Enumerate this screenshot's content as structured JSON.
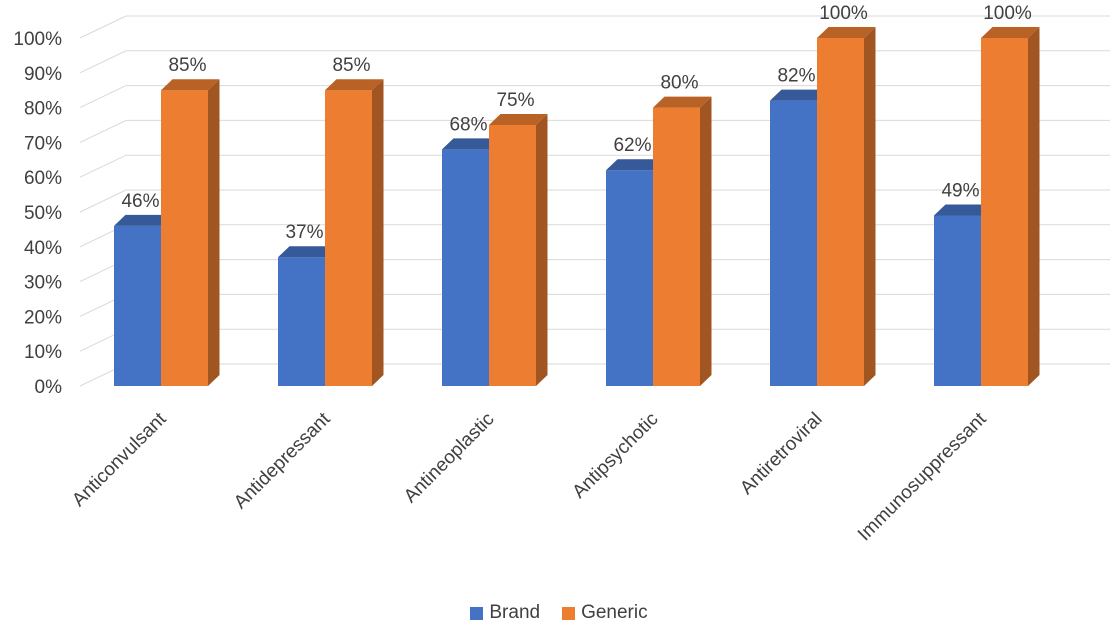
{
  "chart_data": {
    "type": "bar",
    "title": "",
    "xlabel": "",
    "ylabel": "",
    "categories": [
      "Anticonvulsant",
      "Antidepressant",
      "Antineoplastic",
      "Antipsychotic",
      "Antiretroviral",
      "Immunosuppressant"
    ],
    "series": [
      {
        "name": "Brand",
        "values": [
          46,
          37,
          68,
          62,
          82,
          49
        ],
        "color": "#4472C4",
        "labels": [
          "46%",
          "37%",
          "68%",
          "62%",
          "82%",
          "49%"
        ]
      },
      {
        "name": "Generic",
        "values": [
          85,
          85,
          75,
          80,
          100,
          100
        ],
        "color": "#ED7D31",
        "labels": [
          "85%",
          "85%",
          "75%",
          "80%",
          "100%",
          "100%"
        ]
      }
    ],
    "ylim": [
      0,
      100
    ],
    "yticks": [
      "0%",
      "10%",
      "20%",
      "30%",
      "40%",
      "50%",
      "60%",
      "70%",
      "80%",
      "90%",
      "100%"
    ],
    "grid": true,
    "legend": "bottom",
    "style": "3d-clustered-column"
  }
}
